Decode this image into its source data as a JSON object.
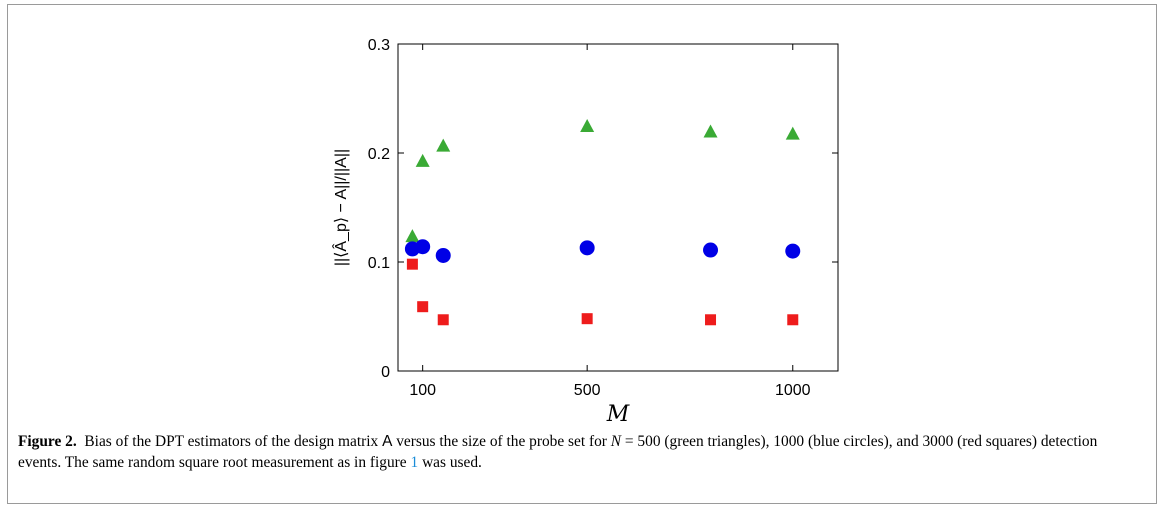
{
  "chart_data": {
    "type": "scatter",
    "title": "",
    "xlabel": "M",
    "ylabel": "||⟨Â_p⟩ − A||/||A||",
    "xlim": [
      40,
      1110
    ],
    "ylim": [
      0,
      0.3
    ],
    "xticks": [
      100,
      500,
      1000
    ],
    "yticks": [
      0,
      0.1,
      0.2,
      0.3
    ],
    "xtick_labels": [
      "100",
      "500",
      "1000"
    ],
    "ytick_labels": [
      "0",
      "0.1",
      "0.2",
      "0.3"
    ],
    "grid": false,
    "legend": "none",
    "series": [
      {
        "marker": "triangle",
        "color": "#3aaa35",
        "x": [
          75,
          100,
          150,
          500,
          800,
          1000
        ],
        "y": [
          0.123,
          0.192,
          0.206,
          0.224,
          0.219,
          0.217
        ]
      },
      {
        "marker": "circle",
        "color": "#0000e6",
        "x": [
          75,
          100,
          150,
          500,
          800,
          1000
        ],
        "y": [
          0.112,
          0.114,
          0.106,
          0.113,
          0.111,
          0.11
        ]
      },
      {
        "marker": "square",
        "color": "#ee1c1c",
        "x": [
          75,
          100,
          150,
          500,
          800,
          1000
        ],
        "y": [
          0.098,
          0.059,
          0.047,
          0.048,
          0.047,
          0.047
        ]
      }
    ]
  },
  "caption": {
    "label": "Figure 2.",
    "t1": "Bias of the DPT estimators of the design matrix",
    "matrix": "A",
    "t2": "versus the size of the probe set for",
    "nvar": "N",
    "t3": "= 500 (green triangles), 1000 (blue circles), and 3000 (red squares) detection events. The same random square root measurement as in figure",
    "ref": "1",
    "t4": "was used."
  }
}
